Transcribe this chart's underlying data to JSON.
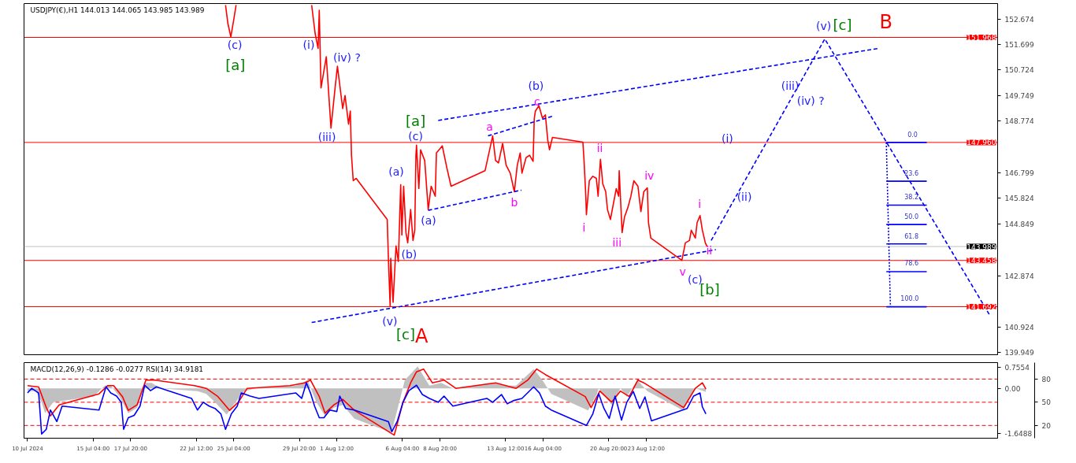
{
  "chart_data": [
    {
      "type": "line",
      "title": "USDJPY(€),H1  144.013 144.065 143.985 143.989",
      "xlim": [
        "2024-07-10T06:00",
        "2024-09-17T12:00"
      ],
      "ylim": [
        139.86,
        153.26
      ],
      "tick_labels": "y",
      "grid": false,
      "yticks": [
        152.674,
        151.699,
        150.724,
        149.749,
        148.774,
        146.799,
        145.824,
        144.849,
        142.874,
        140.924,
        139.949
      ],
      "series": [
        {
          "color": "#ff0000",
          "line_style": "solid",
          "x": [
            "2024-07-24T14:00",
            "2024-07-24T18:00",
            "2024-07-24T23:00",
            "2024-07-25T04:00",
            "2024-07-25T08:00",
            "2024-07-29T00:00",
            "2024-07-30T17:00",
            "2024-07-30T23:00",
            "2024-07-31T04:00",
            "2024-07-31T06:00",
            "2024-07-31T08:00",
            "2024-07-31T09:00",
            "2024-07-31T18:00",
            "2024-08-01T02:00",
            "2024-08-01T09:00",
            "2024-08-01T13:00",
            "2024-08-01T22:00",
            "2024-08-02T02:00",
            "2024-08-02T08:00",
            "2024-08-02T11:00",
            "2024-08-02T13:00",
            "2024-08-02T16:00",
            "2024-08-02T21:00",
            "2024-08-05T02:00",
            "2024-08-05T04:00",
            "2024-08-05T07:00",
            "2024-08-05T08:00",
            "2024-08-05T12:00",
            "2024-08-05T17:00",
            "2024-08-05T21:00",
            "2024-08-06T01:00",
            "2024-08-06T03:00",
            "2024-08-06T06:00",
            "2024-08-06T10:00",
            "2024-08-06T13:00",
            "2024-08-06T18:00",
            "2024-08-06T22:00",
            "2024-08-07T01:00",
            "2024-08-07T03:00",
            "2024-08-07T04:00",
            "2024-08-07T08:00",
            "2024-08-07T11:00",
            "2024-08-07T18:00",
            "2024-08-08T00:00",
            "2024-08-08T05:00",
            "2024-08-08T12:00",
            "2024-08-08T14:00",
            "2024-08-09T00:00",
            "2024-08-09T08:00",
            "2024-08-09T15:00",
            "2024-08-12T01:00",
            "2024-08-12T14:00",
            "2024-08-12T19:00",
            "2024-08-13T00:00",
            "2024-08-13T07:00",
            "2024-08-13T13:00",
            "2024-08-13T20:00",
            "2024-08-14T03:00",
            "2024-08-14T08:00",
            "2024-08-14T13:00",
            "2024-08-14T16:00",
            "2024-08-14T23:00",
            "2024-08-15T05:00",
            "2024-08-15T11:00",
            "2024-08-15T13:00",
            "2024-08-15T15:00",
            "2024-08-15T21:00",
            "2024-08-16T03:00",
            "2024-08-16T08:00",
            "2024-08-16T12:00",
            "2024-08-16T15:00",
            "2024-08-16T20:00",
            "2024-08-19T00:00",
            "2024-08-19T02:00",
            "2024-08-19T05:00",
            "2024-08-19T06:00",
            "2024-08-19T11:00",
            "2024-08-19T17:00",
            "2024-08-19T23:00",
            "2024-08-20T02:00",
            "2024-08-20T06:00",
            "2024-08-20T10:00",
            "2024-08-20T15:00",
            "2024-08-20T18:00",
            "2024-08-20T23:00",
            "2024-08-21T04:00",
            "2024-08-21T09:00",
            "2024-08-21T13:00",
            "2024-08-21T14:00",
            "2024-08-21T19:00",
            "2024-08-21T23:00",
            "2024-08-22T05:00",
            "2024-08-22T10:00",
            "2024-08-22T15:00",
            "2024-08-22T22:00",
            "2024-08-23T03:00",
            "2024-08-23T08:00",
            "2024-08-23T14:00",
            "2024-08-23T16:00",
            "2024-08-23T20:00",
            "2024-08-26T01:00",
            "2024-08-26T07:00",
            "2024-08-26T14:00",
            "2024-08-26T17:00",
            "2024-08-27T00:00",
            "2024-08-27T03:00",
            "2024-08-27T08:00",
            "2024-08-27T12:00",
            "2024-08-27T17:00",
            "2024-08-27T20:00"
          ],
          "values": [
            153.2,
            152.5,
            151.99,
            152.64,
            153.2,
            null,
            153.2,
            152.11,
            151.55,
            153.0,
            150.93,
            150.04,
            151.23,
            148.51,
            150.04,
            150.87,
            149.25,
            149.75,
            148.66,
            149.16,
            147.47,
            146.5,
            146.59,
            145.02,
            143.54,
            141.7,
            143.54,
            141.86,
            144.01,
            143.42,
            146.35,
            144.43,
            146.29,
            144.52,
            144.13,
            145.4,
            144.22,
            144.61,
            147.47,
            147.86,
            146.2,
            147.68,
            147.27,
            145.4,
            146.29,
            145.91,
            147.56,
            147.83,
            146.97,
            146.29,
            146.88,
            148.21,
            147.27,
            147.18,
            147.92,
            147.09,
            146.79,
            146.08,
            147.09,
            147.56,
            146.79,
            147.38,
            147.47,
            147.24,
            148.86,
            149.16,
            149.36,
            148.89,
            149.01,
            148.06,
            147.68,
            148.15,
            147.97,
            147.27,
            145.91,
            145.2,
            146.5,
            146.67,
            146.59,
            145.91,
            147.32,
            146.38,
            146.08,
            145.4,
            145.02,
            145.61,
            146.2,
            145.91,
            146.88,
            144.52,
            145.11,
            145.49,
            145.91,
            146.5,
            146.29,
            145.32,
            146.08,
            146.23,
            144.9,
            144.31,
            143.46,
            144.13,
            144.22,
            144.61,
            144.31,
            144.9,
            145.17,
            144.61,
            144.13,
            143.989
          ]
        },
        {
          "color": "#0000ff",
          "line_style": "dashed",
          "x": [
            "2024-07-30T17:00",
            "2024-08-28T11:00"
          ],
          "values": [
            141.09,
            143.87
          ]
        },
        {
          "color": "#0000ff",
          "line_style": "dashed",
          "x": [
            "2024-08-08T17:00",
            "2024-09-09T01:00"
          ],
          "values": [
            148.8,
            151.55
          ]
        },
        {
          "color": "#0000ff",
          "line_style": "dashed",
          "x": [
            "2024-08-12T06:00",
            "2024-08-16T23:00"
          ],
          "values": [
            148.21,
            148.98
          ]
        },
        {
          "color": "#0000ff",
          "line_style": "dashed",
          "x": [
            "2024-08-08T00:00",
            "2024-08-14T15:00"
          ],
          "values": [
            145.37,
            146.14
          ]
        },
        {
          "color": "#0000ff",
          "line_style": "dashed",
          "x": [
            "2024-08-28T03:00",
            "2024-09-05T05:00",
            "2024-09-16T22:00"
          ],
          "values": [
            144.22,
            151.91,
            141.39
          ]
        },
        {
          "color": "#0000ff",
          "line_style": "dotted",
          "x": [
            "2024-09-09T14:00",
            "2024-09-09T21:00"
          ],
          "values": [
            147.96,
            141.69
          ]
        },
        {
          "color": "#0000ff",
          "line_style": "solid",
          "x": [
            "2024-09-09T14:00",
            "2024-09-12T11:00"
          ],
          "values": [
            147.96,
            147.96
          ]
        },
        {
          "color": "#0000ff",
          "line_style": "solid",
          "x": [
            "2024-09-09T14:00",
            "2024-09-12T11:00"
          ],
          "values": [
            146.48,
            146.48
          ]
        },
        {
          "color": "#0000ff",
          "line_style": "solid",
          "x": [
            "2024-09-09T14:00",
            "2024-09-12T11:00"
          ],
          "values": [
            145.57,
            145.57
          ]
        },
        {
          "color": "#0000ff",
          "line_style": "solid",
          "x": [
            "2024-09-09T14:00",
            "2024-09-12T11:00"
          ],
          "values": [
            144.83,
            144.83
          ]
        },
        {
          "color": "#0000ff",
          "line_style": "solid",
          "x": [
            "2024-09-09T14:00",
            "2024-09-12T11:00"
          ],
          "values": [
            144.09,
            144.09
          ]
        },
        {
          "color": "#0000ff",
          "line_style": "solid",
          "x": [
            "2024-09-09T14:00",
            "2024-09-12T11:00"
          ],
          "values": [
            143.03,
            143.03
          ]
        },
        {
          "color": "#0000ff",
          "line_style": "solid",
          "x": [
            "2024-09-09T14:00",
            "2024-09-12T11:00"
          ],
          "values": [
            141.69,
            141.69
          ]
        }
      ],
      "ref_lines": [
        {
          "axis": "y",
          "value": 151.968,
          "label": "151.968",
          "color": "#ff0000"
        },
        {
          "axis": "y",
          "value": 147.96,
          "label": "147.960",
          "color": "#ff0000"
        },
        {
          "axis": "y",
          "value": 143.989,
          "label": "143.989",
          "color": "#c0c0c0"
        },
        {
          "axis": "y",
          "value": 143.458,
          "label": "143.458",
          "color": "#ff0000"
        },
        {
          "axis": "y",
          "value": 141.692,
          "label": "141.692",
          "color": "#ff0000"
        }
      ],
      "annotations": [
        "(c)",
        "[a]",
        "(i)",
        "(iv) ?",
        "(iii)",
        "(a)",
        "(b)",
        "(v)",
        "[c]",
        "A",
        "[a]",
        "(c)",
        "(a)",
        "a",
        "b",
        "(b)",
        "c",
        "ii",
        "i",
        "iii",
        "iv",
        "i",
        "ii",
        "v",
        "(c)",
        "[b]",
        "(i)",
        "(ii)",
        "(iii)",
        "(iv) ?",
        "(v)",
        "[c]",
        "B",
        "0.0",
        "23.6",
        "38.2",
        "50.0",
        "61.8",
        "78.6",
        "100.0"
      ]
    },
    {
      "type": "line",
      "title": "MACD(12,26,9) -0.1286 -0.0277 RSI(14) 34.9181",
      "xlim": [
        "2024-07-10T06:00",
        "2024-09-17T12:00"
      ],
      "ylim": [
        -1.81,
        0.934
      ],
      "y2lim": [
        3.5,
        101.3
      ],
      "grid": false,
      "yticks": [
        0.7554,
        {
          "value": 0,
          "label": "0.00"
        },
        -1.6488
      ],
      "y2ticks": [
        80,
        50,
        20
      ],
      "xticks": [
        {
          "value": "2024-07-10T12:00",
          "label": "10 Jul 2024"
        },
        {
          "value": "2024-07-15T04:00",
          "label": "15 Jul 04:00"
        },
        {
          "value": "2024-07-17T20:00",
          "label": "17 Jul 20:00"
        },
        {
          "value": "2024-07-22T12:00",
          "label": "22 Jul 12:00"
        },
        {
          "value": "2024-07-25T04:00",
          "label": "25 Jul 04:00"
        },
        {
          "value": "2024-07-29T20:00",
          "label": "29 Jul 20:00"
        },
        {
          "value": "2024-08-01T12:00",
          "label": "1 Aug 12:00"
        },
        {
          "value": "2024-08-06T04:00",
          "label": "6 Aug 04:00"
        },
        {
          "value": "2024-08-08T20:00",
          "label": "8 Aug 20:00"
        },
        {
          "value": "2024-08-13T12:00",
          "label": "13 Aug 12:00"
        },
        {
          "value": "2024-08-16T04:00",
          "label": "16 Aug 04:00"
        },
        {
          "value": "2024-08-20T20:00",
          "label": "20 Aug 20:00"
        },
        {
          "value": "2024-08-23T12:00",
          "label": "23 Aug 12:00"
        }
      ],
      "series": [
        {
          "type": "area",
          "color": "#c0c0c0",
          "x": [
            "2024-07-10T12:00",
            "2024-07-11T02:00",
            "2024-07-11T12:00",
            "2024-07-11T18:00",
            "2024-07-12T08:00",
            "2024-07-15T04:00",
            "2024-07-16T00:00",
            "2024-07-16T10:00",
            "2024-07-17T01:00",
            "2024-07-17T16:00",
            "2024-07-18T07:00",
            "2024-07-18T20:00",
            "2024-07-19T08:00",
            "2024-07-19T23:00",
            "2024-07-22T14:00",
            "2024-07-23T05:00",
            "2024-07-23T20:00",
            "2024-07-24T16:00",
            "2024-07-25T07:00",
            "2024-07-25T22:00",
            "2024-07-26T18:00",
            "2024-07-29T14:00",
            "2024-07-30T10:00",
            "2024-07-31T01:00",
            "2024-07-31T16:00",
            "2024-08-01T07:00",
            "2024-08-01T22:00",
            "2024-08-02T18:00",
            "2024-08-05T09:00",
            "2024-08-05T19:00",
            "2024-08-06T08:00",
            "2024-08-07T06:00",
            "2024-08-08T02:00",
            "2024-08-08T22:00",
            "2024-08-09T18:00",
            "2024-08-12T14:00",
            "2024-08-13T10:00",
            "2024-08-14T06:00",
            "2024-08-15T12:00",
            "2024-08-16T03:00",
            "2024-08-16T18:00",
            "2024-08-19T09:00",
            "2024-08-20T00:00",
            "2024-08-20T03:00",
            "2024-08-21T01:00",
            "2024-08-21T16:00",
            "2024-08-22T03:00",
            "2024-08-22T21:00",
            "2024-08-23T14:00",
            "2024-08-26T03:00",
            "2024-08-27T01:00",
            "2024-08-27T18:00"
          ],
          "values": [
            -0.1,
            -0.1,
            -0.5,
            -0.9,
            -0.5,
            -0.3,
            0.1,
            0.1,
            -0.3,
            -0.9,
            -0.7,
            0.2,
            0.2,
            0.0,
            -0.1,
            -0.2,
            -0.5,
            -0.95,
            -0.5,
            -0.1,
            0.0,
            0.1,
            0.3,
            -0.5,
            -1.0,
            -0.7,
            -0.6,
            -1.1,
            -1.6,
            -0.8,
            0.3,
            0.8,
            0.1,
            0.2,
            0.0,
            0.2,
            0.1,
            0.1,
            0.7,
            0.3,
            -0.2,
            -0.8,
            -0.2,
            0.0,
            -0.6,
            0.0,
            -0.3,
            0.3,
            -0.1,
            -0.8,
            0.0,
            -0.13
          ]
        },
        {
          "type": "line",
          "color": "#ff0000",
          "line_style": "solid",
          "x": [
            "2024-07-10T12:00",
            "2024-07-11T07:00",
            "2024-07-11T20:00",
            "2024-07-12T03:00",
            "2024-07-12T18:00",
            "2024-07-15T14:00",
            "2024-07-16T05:00",
            "2024-07-16T15:00",
            "2024-07-17T06:00",
            "2024-07-17T16:00",
            "2024-07-18T07:00",
            "2024-07-18T22:00",
            "2024-07-19T13:00",
            "2024-07-22T09:00",
            "2024-07-23T05:00",
            "2024-07-24T01:00",
            "2024-07-24T21:00",
            "2024-07-25T12:00",
            "2024-07-26T03:00",
            "2024-07-29T04:00",
            "2024-07-30T05:00",
            "2024-07-30T15:00",
            "2024-07-31T06:00",
            "2024-07-31T16:00",
            "2024-08-01T07:00",
            "2024-08-01T22:00",
            "2024-08-02T18:00",
            "2024-08-05T14:00",
            "2024-08-06T05:00",
            "2024-08-06T18:00",
            "2024-08-07T04:00",
            "2024-08-07T16:00",
            "2024-08-08T07:00",
            "2024-08-09T03:00",
            "2024-08-09T23:00",
            "2024-08-12T19:00",
            "2024-08-14T06:00",
            "2024-08-15T02:00",
            "2024-08-15T17:00",
            "2024-08-16T08:00",
            "2024-08-19T04:00",
            "2024-08-19T14:00",
            "2024-08-20T05:00",
            "2024-08-21T01:00",
            "2024-08-21T16:00",
            "2024-08-22T07:00",
            "2024-08-22T22:00",
            "2024-08-23T08:00",
            "2024-08-26T04:00",
            "2024-08-27T00:00",
            "2024-08-27T12:00",
            "2024-08-27T18:00"
          ],
          "values": [
            0.1,
            0.05,
            -0.7,
            -1.0,
            -0.6,
            -0.2,
            0.1,
            0.1,
            -0.3,
            -0.8,
            -0.6,
            0.3,
            0.3,
            0.1,
            0.0,
            -0.3,
            -0.8,
            -0.5,
            0.0,
            0.1,
            0.2,
            0.3,
            -0.3,
            -0.9,
            -0.6,
            -0.4,
            -0.8,
            -1.7,
            -0.5,
            0.2,
            0.6,
            0.7,
            0.2,
            0.3,
            0.0,
            0.2,
            0.0,
            0.3,
            0.7,
            0.5,
            -0.3,
            -0.7,
            -0.1,
            -0.5,
            -0.1,
            -0.3,
            0.3,
            0.2,
            -0.7,
            0.0,
            0.2,
            -0.03
          ]
        },
        {
          "type": "line",
          "color": "#0000ff",
          "line_style": "solid",
          "axis": "y2",
          "x": [
            "2024-07-10T12:00",
            "2024-07-10T19:00",
            "2024-07-11T07:00",
            "2024-07-11T12:00",
            "2024-07-11T20:00",
            "2024-07-12T03:00",
            "2024-07-12T14:00",
            "2024-07-12T23:00",
            "2024-07-15T14:00",
            "2024-07-16T02:00",
            "2024-07-16T10:00",
            "2024-07-16T20:00",
            "2024-07-17T04:00",
            "2024-07-17T08:00",
            "2024-07-17T16:00",
            "2024-07-18T02:00",
            "2024-07-18T12:00",
            "2024-07-18T20:00",
            "2024-07-19T06:00",
            "2024-07-19T16:00",
            "2024-07-22T04:00",
            "2024-07-22T14:00",
            "2024-07-23T00:00",
            "2024-07-23T10:00",
            "2024-07-23T20:00",
            "2024-07-24T06:00",
            "2024-07-24T14:00",
            "2024-07-25T00:00",
            "2024-07-25T10:00",
            "2024-07-25T17:00",
            "2024-07-26T08:00",
            "2024-07-26T23:00",
            "2024-07-29T14:00",
            "2024-07-30T00:00",
            "2024-07-30T08:00",
            "2024-07-30T15:00",
            "2024-07-30T22:00",
            "2024-07-31T06:00",
            "2024-07-31T14:00",
            "2024-08-01T00:00",
            "2024-08-01T12:00",
            "2024-08-01T17:00",
            "2024-08-02T03:00",
            "2024-08-02T18:00",
            "2024-08-05T04:00",
            "2024-08-05T10:00",
            "2024-08-05T19:00",
            "2024-08-06T05:00",
            "2024-08-06T15:00",
            "2024-08-07T04:00",
            "2024-08-07T14:00",
            "2024-08-08T02:00",
            "2024-08-08T17:00",
            "2024-08-09T03:00",
            "2024-08-09T18:00",
            "2024-08-12T04:00",
            "2024-08-12T14:00",
            "2024-08-13T05:00",
            "2024-08-13T15:00",
            "2024-08-14T01:00",
            "2024-08-14T16:00",
            "2024-08-15T12:00",
            "2024-08-15T22:00",
            "2024-08-16T08:00",
            "2024-08-16T18:00",
            "2024-08-19T06:00",
            "2024-08-19T17:00",
            "2024-08-20T03:00",
            "2024-08-20T12:00",
            "2024-08-20T21:00",
            "2024-08-21T07:00",
            "2024-08-21T18:00",
            "2024-08-22T03:00",
            "2024-08-22T14:00",
            "2024-08-23T01:00",
            "2024-08-23T10:00",
            "2024-08-23T21:00",
            "2024-08-26T10:00",
            "2024-08-26T21:00",
            "2024-08-27T08:00",
            "2024-08-27T12:00",
            "2024-08-27T18:00"
          ],
          "values": [
            62,
            68,
            62,
            9,
            15,
            40,
            25,
            45,
            40,
            70,
            62,
            58,
            50,
            15,
            30,
            33,
            45,
            72,
            65,
            70,
            55,
            40,
            50,
            45,
            42,
            35,
            15,
            35,
            45,
            62,
            58,
            55,
            62,
            55,
            75,
            62,
            45,
            30,
            30,
            40,
            38,
            58,
            42,
            40,
            25,
            12,
            25,
            50,
            65,
            72,
            60,
            55,
            50,
            58,
            45,
            55,
            50,
            60,
            48,
            52,
            55,
            70,
            62,
            45,
            40,
            20,
            35,
            61,
            42,
            29,
            58,
            27,
            50,
            64,
            42,
            57,
            26,
            42,
            58,
            62,
            44,
            35
          ]
        }
      ],
      "ref_lines": [
        {
          "axis": "y2",
          "value": 80,
          "color": "#ff0000",
          "line_style": "dashed"
        },
        {
          "axis": "y2",
          "value": 50,
          "color": "#ff0000",
          "line_style": "dashed"
        },
        {
          "axis": "y2",
          "value": 20,
          "color": "#ff0000",
          "line_style": "dashed"
        }
      ]
    }
  ]
}
